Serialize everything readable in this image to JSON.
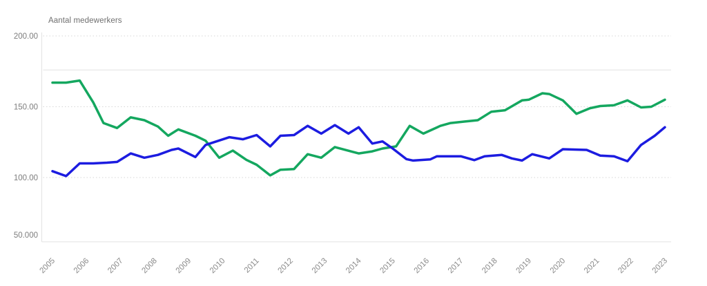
{
  "chart": {
    "axis_title": "Aantal medewerkers",
    "colors": {
      "green_series": "#14a75f",
      "blue_series": "#1c1ce0",
      "gridline_dotted": "#d6d6d6",
      "gridline_solid": "#e2e2e2",
      "axis_line": "#e2e2e2",
      "tick_text": "#7d7d7d"
    }
  },
  "chart_data": {
    "type": "line",
    "title": "",
    "ylabel": "Aantal medewerkers",
    "xlabel": "",
    "grid": "horizontal dotted gridlines at labeled ticks, one solid unlabeled line near value 176, solid bottom and left axis lines",
    "legend": "none visible",
    "x_axis": {
      "tick_labels": [
        "2005",
        "2006",
        "2007",
        "2008",
        "2009",
        "2010",
        "2011",
        "2012",
        "2013",
        "2014",
        "2015",
        "2016",
        "2017",
        "2018",
        "2019",
        "2020",
        "2021",
        "2022",
        "2023"
      ],
      "range": [
        2005,
        2023
      ],
      "label_rotation_deg": -45
    },
    "y_axis": {
      "ticks": [
        {
          "label": "200.00",
          "value": 200
        },
        {
          "label": "150.00",
          "value": 150
        },
        {
          "label": "100.00",
          "value": 100
        },
        {
          "label": "50.000",
          "value": 50
        }
      ],
      "range": [
        50,
        200
      ]
    },
    "reference_line": {
      "value": 176,
      "style": "solid",
      "label": ""
    },
    "series": [
      {
        "name": "green-series",
        "color": "#14a75f",
        "points": [
          [
            2005.0,
            167
          ],
          [
            2005.4,
            167
          ],
          [
            2005.8,
            168.5
          ],
          [
            2006.2,
            153
          ],
          [
            2006.5,
            138.5
          ],
          [
            2006.9,
            135
          ],
          [
            2007.3,
            142.5
          ],
          [
            2007.7,
            140.5
          ],
          [
            2008.1,
            136
          ],
          [
            2008.4,
            129.5
          ],
          [
            2008.7,
            134
          ],
          [
            2009.2,
            129.5
          ],
          [
            2009.5,
            126
          ],
          [
            2009.9,
            114
          ],
          [
            2010.3,
            119
          ],
          [
            2010.7,
            112.5
          ],
          [
            2011.0,
            109
          ],
          [
            2011.4,
            101.5
          ],
          [
            2011.7,
            105.5
          ],
          [
            2012.1,
            106
          ],
          [
            2012.5,
            116.5
          ],
          [
            2012.9,
            114
          ],
          [
            2013.3,
            121.5
          ],
          [
            2014.0,
            117
          ],
          [
            2014.4,
            118.5
          ],
          [
            2014.7,
            120.5
          ],
          [
            2015.1,
            122
          ],
          [
            2015.5,
            136.5
          ],
          [
            2015.9,
            131
          ],
          [
            2016.4,
            136.5
          ],
          [
            2016.7,
            138.5
          ],
          [
            2017.1,
            139.5
          ],
          [
            2017.5,
            140.5
          ],
          [
            2017.9,
            146.5
          ],
          [
            2018.3,
            147.5
          ],
          [
            2018.8,
            154.5
          ],
          [
            2019.0,
            155
          ],
          [
            2019.4,
            159.5
          ],
          [
            2019.6,
            159
          ],
          [
            2020.0,
            154.5
          ],
          [
            2020.4,
            145
          ],
          [
            2020.8,
            149
          ],
          [
            2021.1,
            150.5
          ],
          [
            2021.5,
            151
          ],
          [
            2021.9,
            154.5
          ],
          [
            2022.3,
            149.5
          ],
          [
            2022.6,
            150
          ],
          [
            2023.0,
            155
          ]
        ]
      },
      {
        "name": "blue-series",
        "color": "#1c1ce0",
        "points": [
          [
            2005.0,
            104.5
          ],
          [
            2005.4,
            101
          ],
          [
            2005.8,
            110
          ],
          [
            2006.2,
            110
          ],
          [
            2006.6,
            110.5
          ],
          [
            2006.9,
            111
          ],
          [
            2007.3,
            117
          ],
          [
            2007.7,
            114
          ],
          [
            2008.1,
            116
          ],
          [
            2008.5,
            119.5
          ],
          [
            2008.7,
            120.5
          ],
          [
            2009.2,
            114.5
          ],
          [
            2009.5,
            123
          ],
          [
            2010.2,
            128.5
          ],
          [
            2010.6,
            127
          ],
          [
            2011.0,
            130
          ],
          [
            2011.4,
            122
          ],
          [
            2011.7,
            129.5
          ],
          [
            2012.1,
            130
          ],
          [
            2012.5,
            136.5
          ],
          [
            2012.9,
            131
          ],
          [
            2013.3,
            137
          ],
          [
            2013.7,
            131
          ],
          [
            2014.0,
            135.5
          ],
          [
            2014.4,
            124
          ],
          [
            2014.7,
            125.5
          ],
          [
            2015.0,
            120.5
          ],
          [
            2015.4,
            113
          ],
          [
            2015.6,
            112
          ],
          [
            2016.1,
            112.8
          ],
          [
            2016.3,
            115
          ],
          [
            2017.0,
            115
          ],
          [
            2017.4,
            112.3
          ],
          [
            2017.7,
            115
          ],
          [
            2018.2,
            116
          ],
          [
            2018.5,
            113.5
          ],
          [
            2018.8,
            112
          ],
          [
            2019.1,
            116.5
          ],
          [
            2019.6,
            113.5
          ],
          [
            2020.0,
            120
          ],
          [
            2020.7,
            119.5
          ],
          [
            2021.1,
            115.5
          ],
          [
            2021.5,
            115
          ],
          [
            2021.9,
            111.5
          ],
          [
            2022.3,
            123
          ],
          [
            2022.7,
            129.5
          ],
          [
            2023.0,
            135.5
          ]
        ]
      }
    ]
  }
}
